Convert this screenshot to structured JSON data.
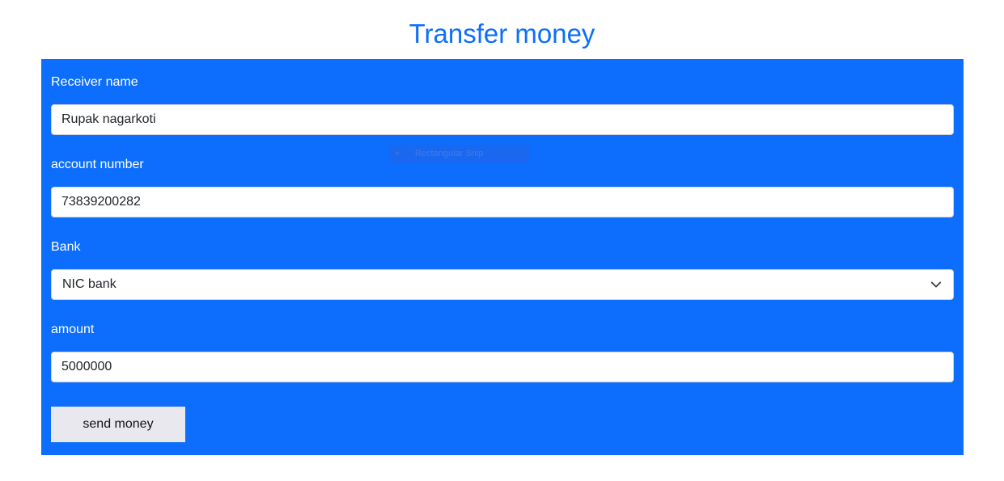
{
  "page": {
    "title": "Transfer money"
  },
  "form": {
    "receiver": {
      "label": "Receiver name",
      "value": "Rupak nagarkoti"
    },
    "account": {
      "label": "account number",
      "value": "73839200282"
    },
    "bank": {
      "label": "Bank",
      "selected": "NIC bank",
      "icon": "chevron-down-icon"
    },
    "amount": {
      "label": "amount",
      "value": "5000000"
    },
    "submit_label": "send money"
  },
  "overlay": {
    "label": "Rectangular Snip",
    "close_glyph": "×"
  },
  "colors": {
    "accent": "#0d6efd",
    "button_bg": "#e9e8ee",
    "field_bg": "#ffffff"
  }
}
